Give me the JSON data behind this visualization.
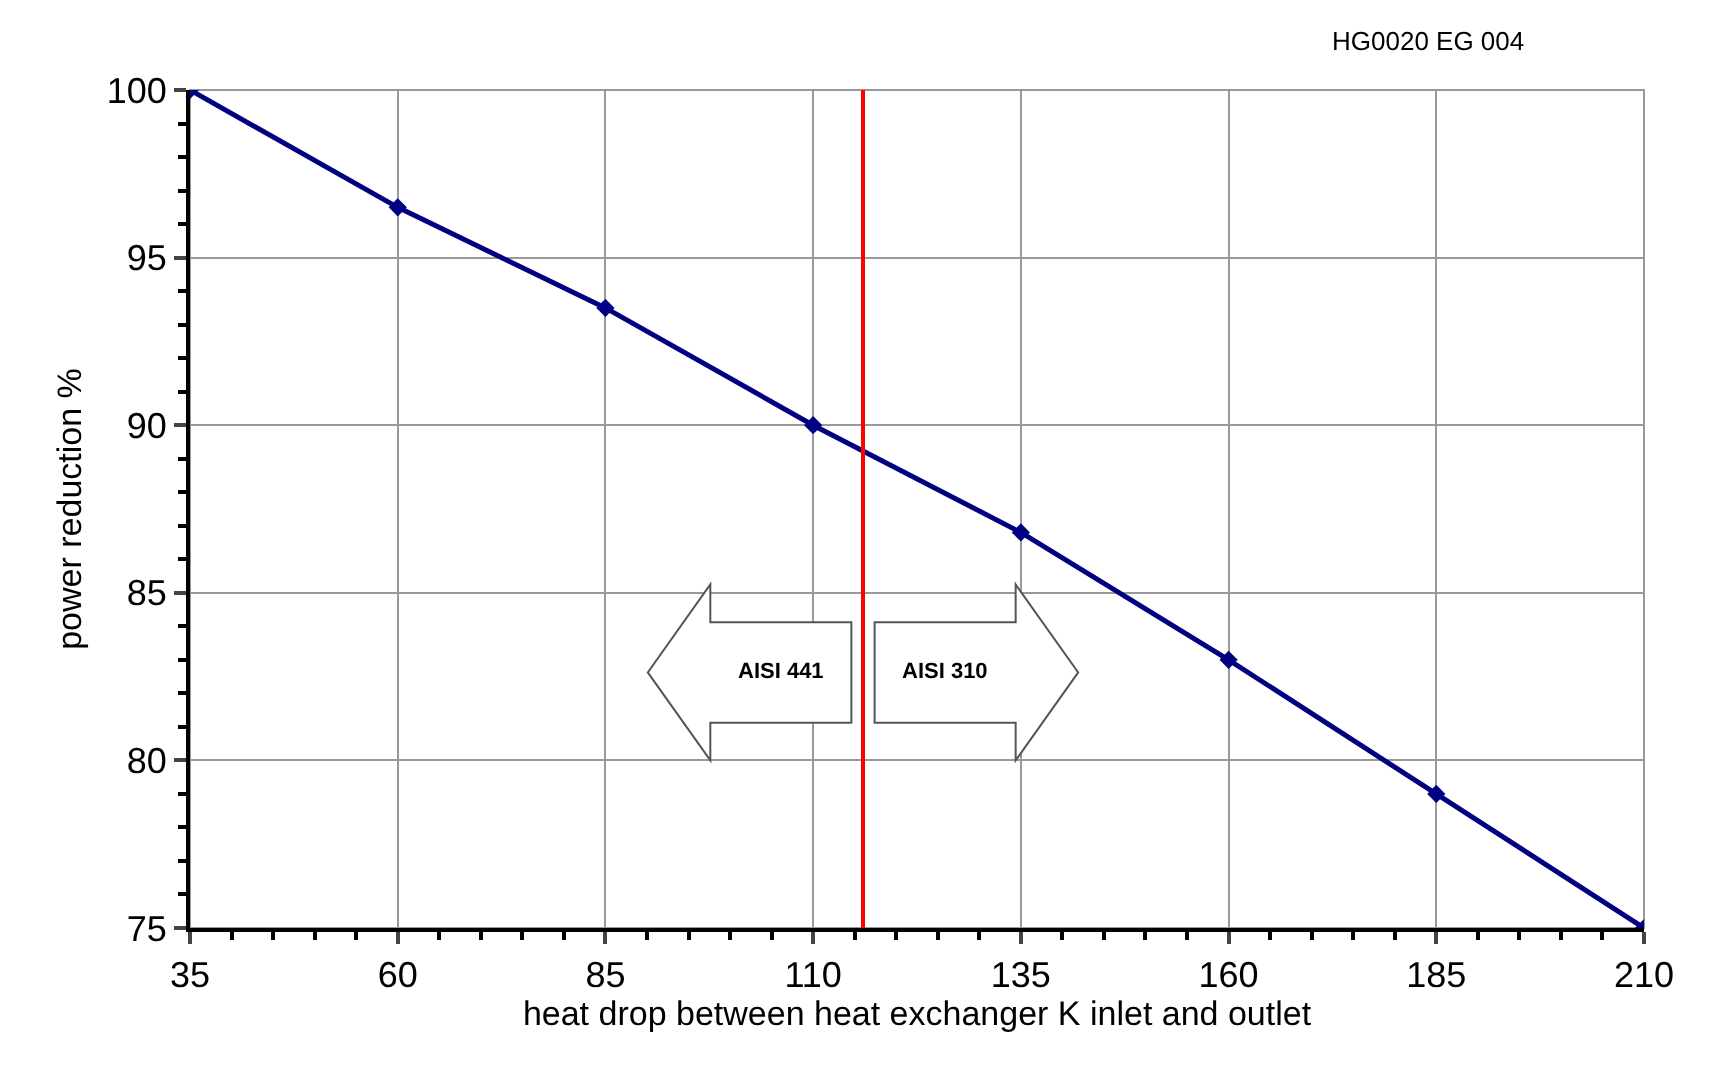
{
  "chart_data": {
    "type": "line",
    "xlabel": "heat drop between heat exchanger K inlet and outlet",
    "ylabel": "power reduction %",
    "x": [
      35,
      60,
      85,
      110,
      135,
      160,
      185,
      210
    ],
    "series": [
      {
        "color": "#000080",
        "values": [
          100,
          96.5,
          93.5,
          90,
          86.8,
          83,
          79,
          75
        ]
      }
    ],
    "xlim": [
      35,
      210
    ],
    "xticks": [
      35,
      60,
      85,
      110,
      135,
      160,
      185,
      210
    ],
    "ylim": [
      75,
      100
    ],
    "yticks": [
      75,
      80,
      85,
      90,
      95,
      100
    ],
    "grid": true,
    "marker": "diamond",
    "line_style": "solid",
    "legend": false,
    "ref_lines": [
      {
        "axis": "x",
        "value": 116,
        "color": "#ff0000"
      }
    ],
    "annotations": [
      "HG0020 EG 004",
      "AISI 441",
      "AISI 310"
    ]
  }
}
